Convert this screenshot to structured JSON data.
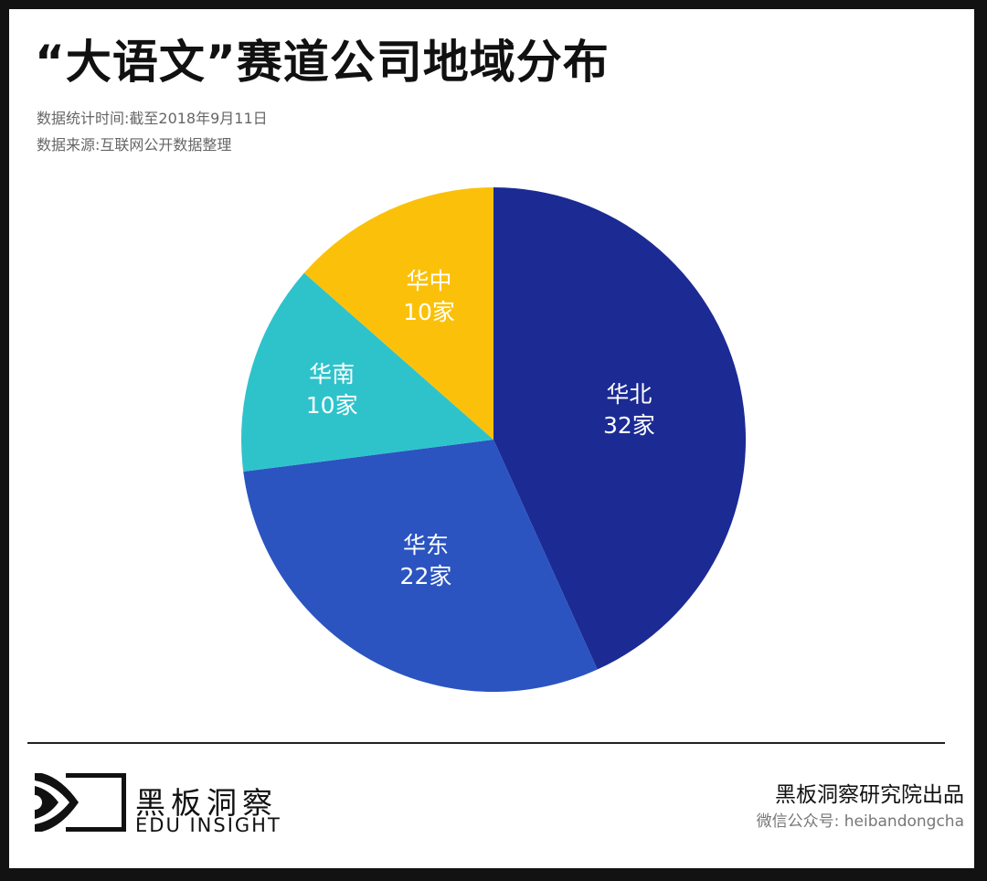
{
  "header": {
    "title": "“大语文”赛道公司地域分布",
    "stat_time": "数据统计时间:截至2018年9月11日",
    "source": "数据来源:互联网公开数据整理"
  },
  "chart_data": {
    "type": "pie",
    "title": "“大语文”赛道公司地域分布",
    "unit": "家",
    "categories": [
      "华北",
      "华东",
      "华南",
      "华中"
    ],
    "values": [
      32,
      22,
      10,
      10
    ],
    "colors": [
      "#1c2a94",
      "#2b54c0",
      "#2ec3cb",
      "#fbc10a"
    ],
    "labels": [
      {
        "name": "华北",
        "value": "32家"
      },
      {
        "name": "华东",
        "value": "22家"
      },
      {
        "name": "华南",
        "value": "10家"
      },
      {
        "name": "华中",
        "value": "10家"
      }
    ],
    "start_angle": "12 o'clock, clockwise",
    "legend": "none (inline labels)"
  },
  "footer": {
    "brand_cn": "黑板洞察",
    "brand_en": "EDU INSIGHT",
    "credit": "黑板洞察研究院出品",
    "wechat": "微信公众号: heibandongcha"
  }
}
